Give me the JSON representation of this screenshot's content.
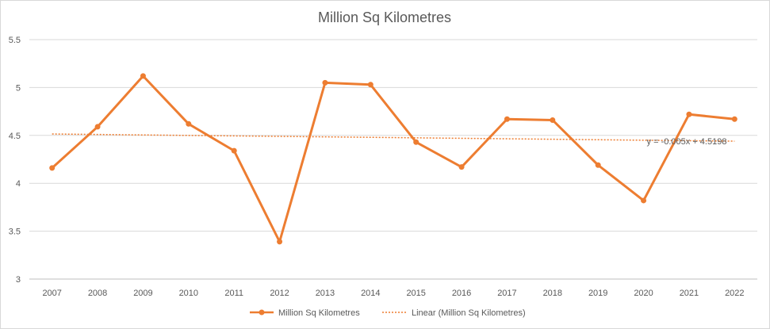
{
  "chart_data": {
    "type": "line",
    "title": "Million Sq Kilometres",
    "xlabel": "",
    "ylabel": "",
    "categories": [
      "2007",
      "2008",
      "2009",
      "2010",
      "2011",
      "2012",
      "2013",
      "2014",
      "2015",
      "2016",
      "2017",
      "2018",
      "2019",
      "2020",
      "2021",
      "2022"
    ],
    "series": [
      {
        "name": "Million Sq Kilometres",
        "values": [
          4.16,
          4.59,
          5.12,
          4.62,
          4.34,
          3.39,
          5.05,
          5.03,
          4.43,
          4.17,
          4.67,
          4.66,
          4.19,
          3.82,
          4.72,
          4.67
        ],
        "color": "#ED7D31"
      }
    ],
    "trendline": {
      "name": "Linear (Million Sq Kilometres)",
      "slope": -0.005,
      "intercept": 4.5198,
      "equation": "y = -0.005x + 4.5198",
      "color": "#ED7D31"
    },
    "ylim": [
      3,
      5.5
    ],
    "yticks": [
      "3",
      "3.5",
      "4",
      "4.5",
      "5",
      "5.5"
    ],
    "grid": true,
    "legend": "bottom"
  }
}
